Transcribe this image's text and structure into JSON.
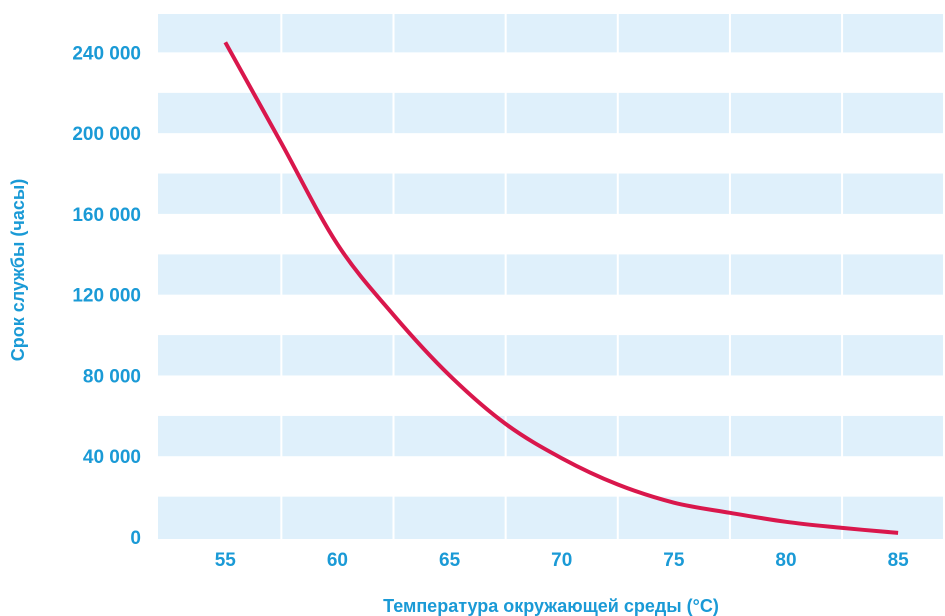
{
  "chart_data": {
    "type": "line",
    "title": "",
    "xlabel": "Температура окружающей среды (°C)",
    "ylabel": "Срок службы (часы)",
    "xlim": [
      52,
      87
    ],
    "ylim": [
      -1000,
      259000
    ],
    "x_ticks": [
      {
        "value": 55,
        "label": "55"
      },
      {
        "value": 60,
        "label": "60"
      },
      {
        "value": 65,
        "label": "65"
      },
      {
        "value": 70,
        "label": "70"
      },
      {
        "value": 75,
        "label": "75"
      },
      {
        "value": 80,
        "label": "80"
      },
      {
        "value": 85,
        "label": "85"
      }
    ],
    "y_ticks": [
      {
        "value": 0,
        "label": "0"
      },
      {
        "value": 40000,
        "label": "40 000"
      },
      {
        "value": 80000,
        "label": "80 000"
      },
      {
        "value": 120000,
        "label": "120 000"
      },
      {
        "value": 160000,
        "label": "160 000"
      },
      {
        "value": 200000,
        "label": "200 000"
      },
      {
        "value": 240000,
        "label": "240 000"
      }
    ],
    "grid": true,
    "colors": {
      "line": "#d9174c",
      "band": "#dff0fb",
      "text": "#1a9ad6",
      "gridline": "#ffffff"
    },
    "series": [
      {
        "x": [
          55,
          57.5,
          60,
          62.5,
          65,
          67.5,
          70,
          72.5,
          75,
          77.5,
          80,
          82.5,
          85
        ],
        "y": [
          245000,
          195000,
          145000,
          110000,
          80000,
          56000,
          39000,
          26000,
          17000,
          12000,
          7500,
          4500,
          2000
        ]
      }
    ]
  }
}
